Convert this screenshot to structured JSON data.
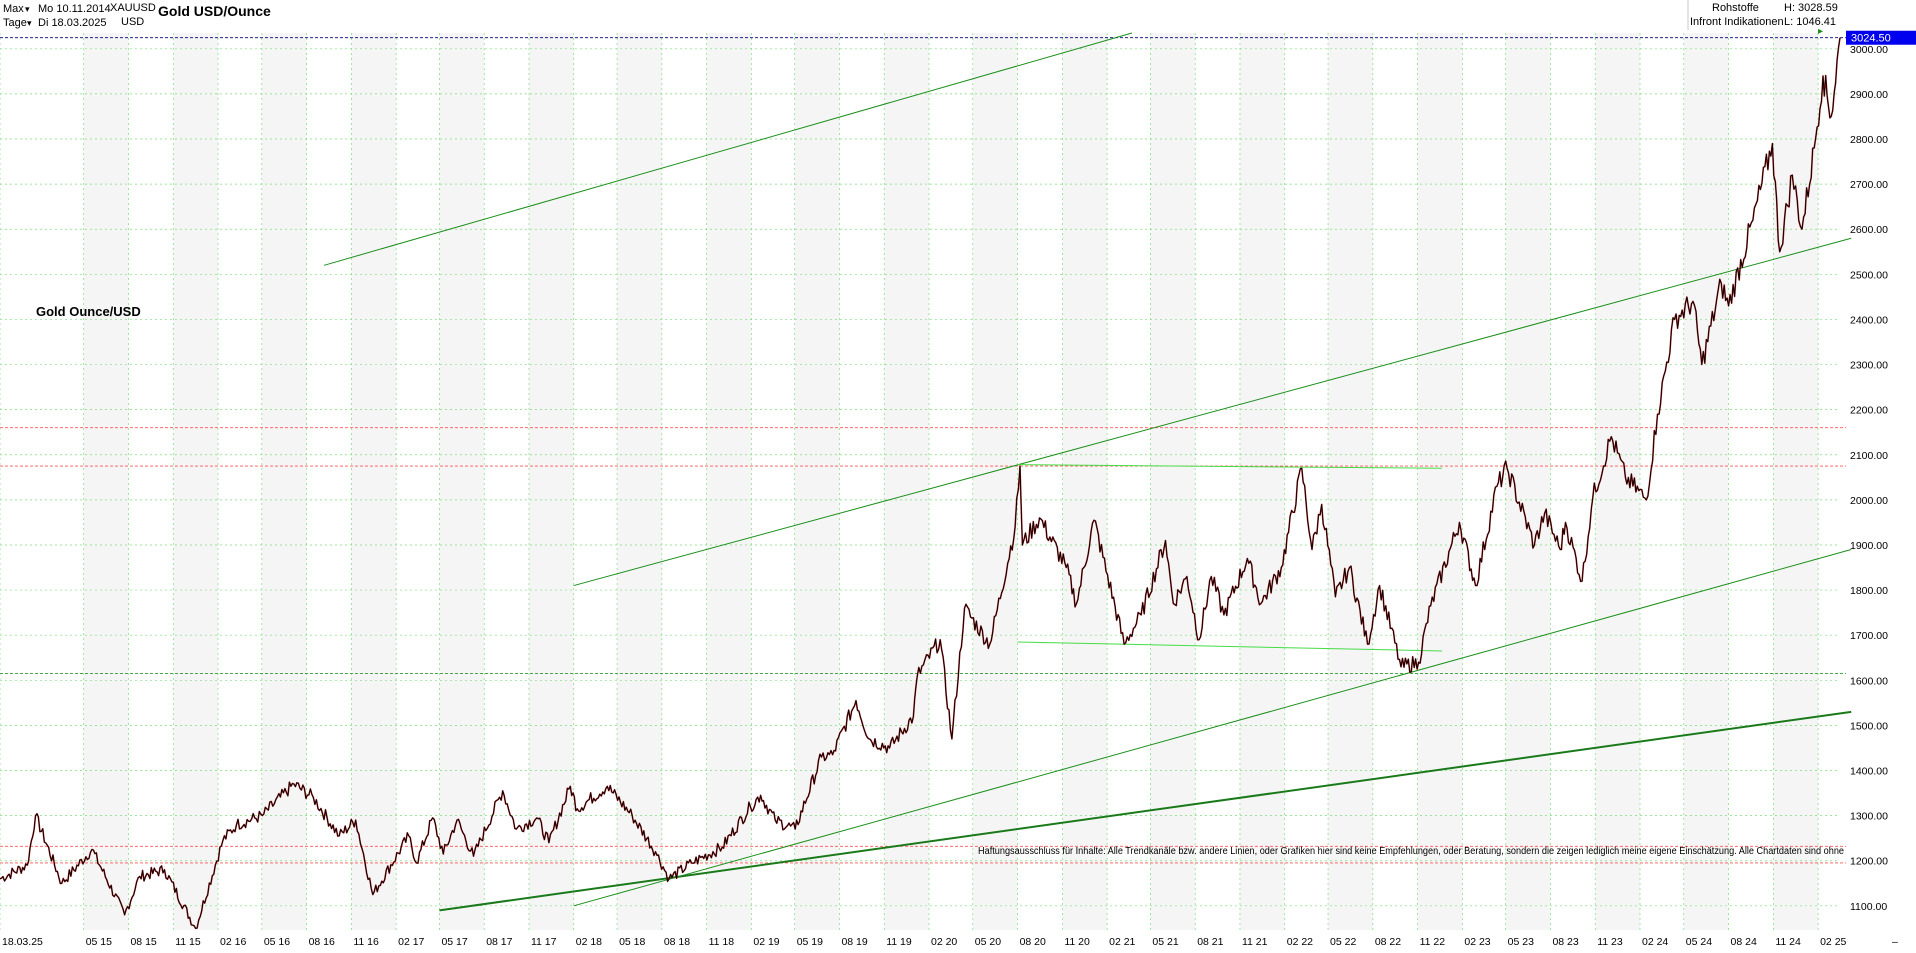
{
  "header": {
    "range_label": "Max",
    "period_label": "Tage",
    "start_date": "Mo 10.11.2014",
    "end_date": "Di 18.03.2025",
    "symbol": "XAUUSD",
    "currency": "USD",
    "title": "Gold USD/Ounce",
    "category": "Rohstoffe",
    "source": "Infront Indikationen",
    "high_label": "H: 3028.59",
    "low_label": "L: 1046.41",
    "current_price_label": "3024.50"
  },
  "annotations": {
    "chart_label": "Gold Ounce/USD",
    "disclaimer": "Haftungsausschluss für Inhalte: Alle Trendkanäle bzw. andere Linien, oder Grafiken hier sind keine Empfehlungen, oder Beratung, sondern die zeigen lediglich meine eigene Einschätzung. Alle Chartdaten sind ohne"
  },
  "chart_data": {
    "type": "line",
    "title": "Gold USD/Ounce",
    "x_start": "2014-11-10",
    "x_end": "2025-03-18",
    "ylim": [
      1046.41,
      3035
    ],
    "y_ticks": [
      1100,
      1200,
      1300,
      1400,
      1500,
      1600,
      1700,
      1800,
      1900,
      2000,
      2100,
      2200,
      2300,
      2400,
      2500,
      2600,
      2700,
      2800,
      2900,
      3000
    ],
    "x_ticks": [
      {
        "date": "2014-11-10",
        "label": "18.03.25"
      },
      {
        "date": "2015-05-01",
        "label": "05 15"
      },
      {
        "date": "2015-08-01",
        "label": "08 15"
      },
      {
        "date": "2015-11-01",
        "label": "11 15"
      },
      {
        "date": "2016-02-01",
        "label": "02 16"
      },
      {
        "date": "2016-05-01",
        "label": "05 16"
      },
      {
        "date": "2016-08-01",
        "label": "08 16"
      },
      {
        "date": "2016-11-01",
        "label": "11 16"
      },
      {
        "date": "2017-02-01",
        "label": "02 17"
      },
      {
        "date": "2017-05-01",
        "label": "05 17"
      },
      {
        "date": "2017-08-01",
        "label": "08 17"
      },
      {
        "date": "2017-11-01",
        "label": "11 17"
      },
      {
        "date": "2018-02-01",
        "label": "02 18"
      },
      {
        "date": "2018-05-01",
        "label": "05 18"
      },
      {
        "date": "2018-08-01",
        "label": "08 18"
      },
      {
        "date": "2018-11-01",
        "label": "11 18"
      },
      {
        "date": "2019-02-01",
        "label": "02 19"
      },
      {
        "date": "2019-05-01",
        "label": "05 19"
      },
      {
        "date": "2019-08-01",
        "label": "08 19"
      },
      {
        "date": "2019-11-01",
        "label": "11 19"
      },
      {
        "date": "2020-02-01",
        "label": "02 20"
      },
      {
        "date": "2020-05-01",
        "label": "05 20"
      },
      {
        "date": "2020-08-01",
        "label": "08 20"
      },
      {
        "date": "2020-11-01",
        "label": "11 20"
      },
      {
        "date": "2021-02-01",
        "label": "02 21"
      },
      {
        "date": "2021-05-01",
        "label": "05 21"
      },
      {
        "date": "2021-08-01",
        "label": "08 21"
      },
      {
        "date": "2021-11-01",
        "label": "11 21"
      },
      {
        "date": "2022-02-01",
        "label": "02 22"
      },
      {
        "date": "2022-05-01",
        "label": "05 22"
      },
      {
        "date": "2022-08-01",
        "label": "08 22"
      },
      {
        "date": "2022-11-01",
        "label": "11 22"
      },
      {
        "date": "2023-02-01",
        "label": "02 23"
      },
      {
        "date": "2023-05-01",
        "label": "05 23"
      },
      {
        "date": "2023-08-01",
        "label": "08 23"
      },
      {
        "date": "2023-11-01",
        "label": "11 23"
      },
      {
        "date": "2024-02-01",
        "label": "02 24"
      },
      {
        "date": "2024-05-01",
        "label": "05 24"
      },
      {
        "date": "2024-08-01",
        "label": "08 24"
      },
      {
        "date": "2024-11-01",
        "label": "11 24"
      },
      {
        "date": "2025-02-01",
        "label": "02 25"
      }
    ],
    "series": [
      {
        "color": "#000000",
        "x": [
          "2014-11-10",
          "2015-01-05",
          "2015-01-22",
          "2015-03-17",
          "2015-05-18",
          "2015-07-24",
          "2015-08-24",
          "2015-10-14",
          "2015-12-17",
          "2016-02-11",
          "2016-03-10",
          "2016-05-02",
          "2016-07-06",
          "2016-08-15",
          "2016-10-07",
          "2016-11-10",
          "2016-12-15",
          "2017-02-27",
          "2017-03-15",
          "2017-04-17",
          "2017-05-09",
          "2017-06-06",
          "2017-07-10",
          "2017-09-08",
          "2017-10-06",
          "2017-11-17",
          "2017-12-12",
          "2018-01-25",
          "2018-02-08",
          "2018-04-11",
          "2018-06-01",
          "2018-07-19",
          "2018-08-16",
          "2018-10-01",
          "2018-12-03",
          "2019-01-30",
          "2019-02-20",
          "2019-03-22",
          "2019-05-02",
          "2019-06-25",
          "2019-07-18",
          "2019-09-04",
          "2019-10-01",
          "2019-11-12",
          "2019-12-31",
          "2020-01-08",
          "2020-02-24",
          "2020-03-19",
          "2020-04-14",
          "2020-06-05",
          "2020-07-27",
          "2020-08-06",
          "2020-08-11",
          "2020-09-15",
          "2020-11-09",
          "2020-11-30",
          "2021-01-05",
          "2021-03-08",
          "2021-04-12",
          "2021-06-01",
          "2021-06-17",
          "2021-07-15",
          "2021-08-09",
          "2021-09-03",
          "2021-09-29",
          "2021-11-16",
          "2021-12-14",
          "2022-01-25",
          "2022-03-08",
          "2022-03-29",
          "2022-04-18",
          "2022-05-16",
          "2022-06-14",
          "2022-07-21",
          "2022-08-15",
          "2022-09-28",
          "2022-11-03",
          "2022-11-28",
          "2023-01-26",
          "2023-02-28",
          "2023-04-13",
          "2023-05-04",
          "2023-06-29",
          "2023-07-20",
          "2023-08-21",
          "2023-09-01",
          "2023-10-05",
          "2023-10-27",
          "2023-12-04",
          "2024-01-02",
          "2024-02-14",
          "2024-03-08",
          "2024-04-12",
          "2024-05-20",
          "2024-06-07",
          "2024-07-17",
          "2024-08-01",
          "2024-09-20",
          "2024-10-30",
          "2024-11-14",
          "2024-12-10",
          "2024-12-30",
          "2025-01-24",
          "2025-02-11",
          "2025-02-28",
          "2025-03-18"
        ],
        "values": [
          1160,
          1190,
          1300,
          1150,
          1225,
          1080,
          1165,
          1180,
          1050,
          1245,
          1280,
          1300,
          1370,
          1340,
          1255,
          1290,
          1125,
          1255,
          1195,
          1295,
          1215,
          1290,
          1210,
          1355,
          1270,
          1295,
          1240,
          1365,
          1315,
          1365,
          1300,
          1220,
          1160,
          1195,
          1230,
          1320,
          1345,
          1290,
          1270,
          1430,
          1435,
          1555,
          1470,
          1450,
          1520,
          1610,
          1690,
          1470,
          1760,
          1680,
          1940,
          2075,
          1900,
          1960,
          1850,
          1770,
          1955,
          1680,
          1745,
          1910,
          1770,
          1830,
          1690,
          1830,
          1745,
          1870,
          1770,
          1850,
          2070,
          1890,
          1990,
          1785,
          1850,
          1680,
          1810,
          1630,
          1640,
          1765,
          1950,
          1810,
          2030,
          2070,
          1900,
          1970,
          1890,
          1950,
          1820,
          2005,
          2140,
          2050,
          2000,
          2190,
          2400,
          2440,
          2300,
          2480,
          2430,
          2620,
          2790,
          2550,
          2720,
          2600,
          2780,
          2940,
          2850,
          3024.5
        ]
      }
    ],
    "horizontal_lines": [
      {
        "y": 3024.5,
        "color": "#000080",
        "style": "dashed"
      },
      {
        "y": 2160,
        "color": "#ff5555",
        "style": "dashed"
      },
      {
        "y": 2075,
        "color": "#ff5555",
        "style": "dashed"
      },
      {
        "y": 1232,
        "color": "#ff5555",
        "style": "dashed"
      },
      {
        "y": 1195,
        "color": "#ff5555",
        "style": "dashed"
      },
      {
        "y": 1615,
        "color": "#2e9b2e",
        "style": "dashed"
      }
    ],
    "trend_lines": [
      {
        "from": [
          "2016-09-06",
          2520
        ],
        "to": [
          "2021-03-24",
          3035
        ],
        "color": "#1a8f1a",
        "width": 1
      },
      {
        "from": [
          "2018-02-01",
          1810
        ],
        "to": [
          "2025-04-10",
          2580
        ],
        "color": "#1a8f1a",
        "width": 1
      },
      {
        "from": [
          "2018-02-01",
          1100
        ],
        "to": [
          "2025-04-10",
          1890
        ],
        "color": "#1a8f1a",
        "width": 1
      },
      {
        "from": [
          "2017-05-01",
          1090
        ],
        "to": [
          "2025-04-10",
          1530
        ],
        "color": "#1a7a1a",
        "width": 2
      },
      {
        "from": [
          "2020-08-01",
          2078
        ],
        "to": [
          "2022-12-21",
          2070
        ],
        "color": "#44dd44",
        "width": 1
      },
      {
        "from": [
          "2020-08-01",
          1685
        ],
        "to": [
          "2022-12-21",
          1665
        ],
        "color": "#44dd44",
        "width": 1
      }
    ],
    "grid": true,
    "y_axis_position": "right"
  }
}
